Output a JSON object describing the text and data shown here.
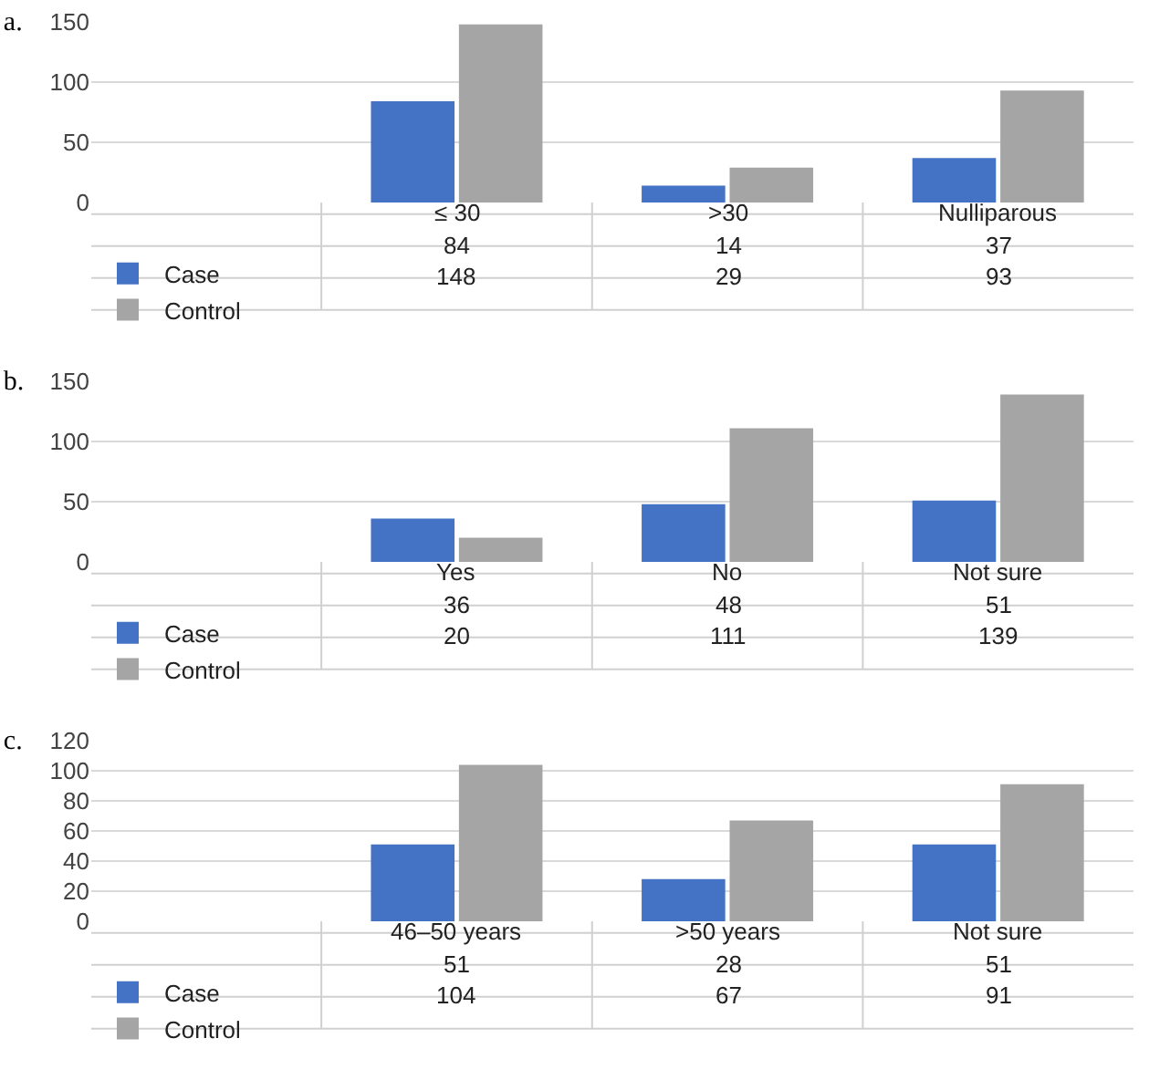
{
  "chart_data": [
    {
      "type": "bar",
      "title": "a.",
      "categories": [
        "≤ 30",
        ">30",
        "Nulliparous"
      ],
      "series": [
        {
          "name": "Case",
          "color": "#4472c4",
          "values": [
            84,
            14,
            37
          ]
        },
        {
          "name": "Control",
          "color": "#a5a5a5",
          "values": [
            148,
            29,
            93
          ]
        }
      ],
      "ylim": [
        0,
        150
      ],
      "yticks": [
        0,
        50,
        100,
        150
      ],
      "grid": "y",
      "legend": "bottom",
      "data_labels": true
    },
    {
      "type": "bar",
      "title": "b.",
      "categories": [
        "Yes",
        "No",
        "Not sure"
      ],
      "series": [
        {
          "name": "Case",
          "color": "#4472c4",
          "values": [
            36,
            48,
            51
          ]
        },
        {
          "name": "Control",
          "color": "#a5a5a5",
          "values": [
            20,
            111,
            139
          ]
        }
      ],
      "ylim": [
        0,
        150
      ],
      "yticks": [
        0,
        50,
        100,
        150
      ],
      "grid": "y",
      "legend": "bottom",
      "data_labels": true
    },
    {
      "type": "bar",
      "title": "c.",
      "categories": [
        "46–50 years",
        ">50 years",
        "Not sure"
      ],
      "series": [
        {
          "name": "Case",
          "color": "#4472c4",
          "values": [
            51,
            28,
            51
          ]
        },
        {
          "name": "Control",
          "color": "#a5a5a5",
          "values": [
            104,
            67,
            91
          ]
        }
      ],
      "ylim": [
        0,
        120
      ],
      "yticks": [
        0,
        20,
        40,
        60,
        80,
        100,
        120
      ],
      "grid": "y",
      "legend": "bottom",
      "data_labels": true
    }
  ]
}
